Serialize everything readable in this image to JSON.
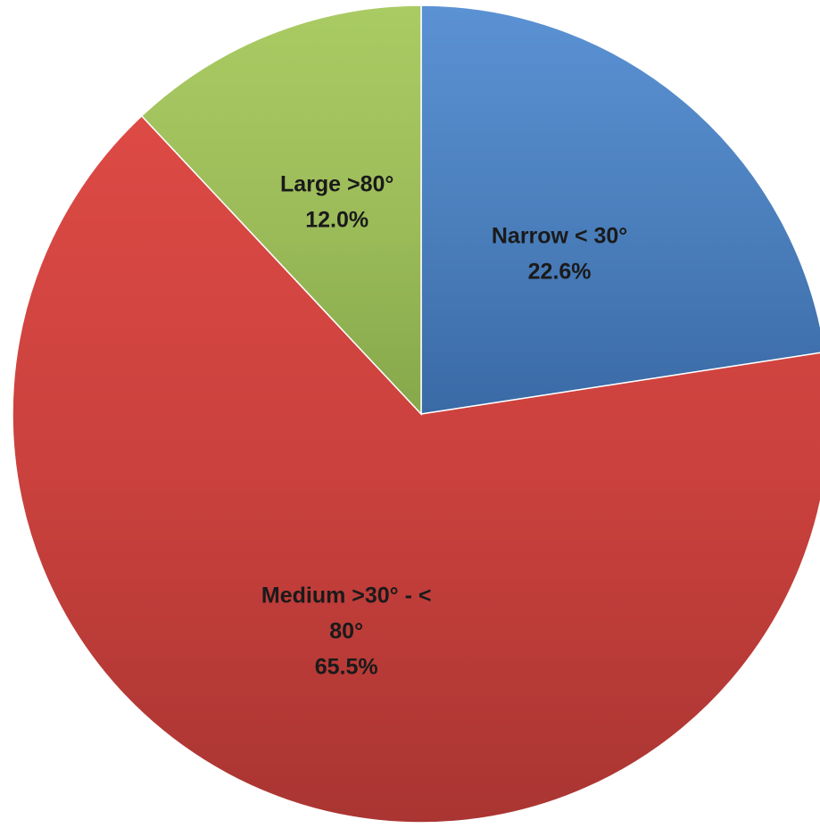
{
  "chart_data": {
    "type": "pie",
    "start_angle_deg": 0,
    "direction": "clockwise",
    "legend": "none",
    "slices": [
      {
        "name_lines": [
          "Narrow < 30°"
        ],
        "value": 22.6,
        "value_label": "22.6%",
        "color": "#4a7ebb",
        "highlight": "#5b92d4",
        "shadow": "#3a6aa6"
      },
      {
        "name_lines": [
          "Medium >30° - <",
          "80°"
        ],
        "value": 65.5,
        "value_label": "65.5%",
        "color": "#c8403c",
        "highlight": "#dd4a45",
        "shadow": "#a93532"
      },
      {
        "name_lines": [
          "Large >80°"
        ],
        "value": 12.0,
        "value_label": "12.0%",
        "color": "#9bbb59",
        "highlight": "#aacb63",
        "shadow": "#86a84a"
      }
    ]
  }
}
